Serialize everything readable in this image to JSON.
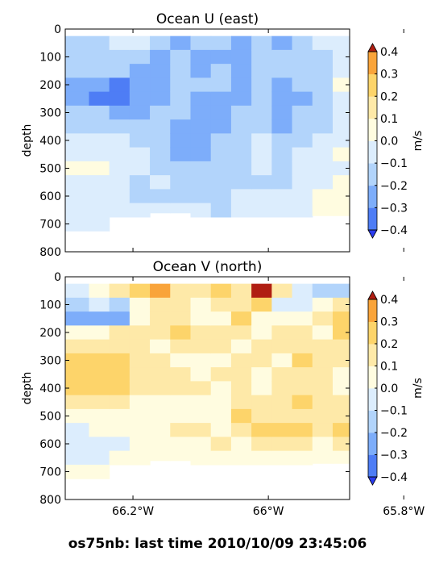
{
  "figure_caption": "os75nb: last time 2010/10/09 23:45:06",
  "chart_data": [
    {
      "type": "heatmap",
      "title": "Ocean U (east)",
      "xlabel": "",
      "ylabel": "depth",
      "ylim": [
        800,
        0
      ],
      "yticks": [
        0,
        100,
        200,
        300,
        400,
        500,
        600,
        700,
        800
      ],
      "xlim": [
        -66.3,
        -65.88
      ],
      "xticks": [
        -66.2,
        -66.0,
        -65.8
      ],
      "xticklabels": [],
      "colorbar": {
        "label": "m/s",
        "levels": [
          -0.4,
          -0.3,
          -0.2,
          -0.1,
          0.0,
          0.1,
          0.2,
          0.3,
          0.4
        ],
        "ticklabels": [
          "0.4",
          "0.3",
          "0.2",
          "0.1",
          "0.0",
          "−0.1",
          "−0.2",
          "−0.3",
          "−0.4"
        ],
        "colors": [
          "#2b3cf0",
          "#4e7df5",
          "#7dadfa",
          "#b2d4fb",
          "#dcedfd",
          "#fffce0",
          "#fee9a8",
          "#fdd46a",
          "#f9a43a",
          "#f06a1c",
          "#d7301f",
          "#b01e12"
        ]
      },
      "profiles": [
        {
          "x": -66.28,
          "bottom": 740,
          "values": [
            -0.15,
            -0.15,
            -0.2,
            -0.25,
            -0.3,
            -0.2,
            -0.15,
            -0.1,
            -0.05,
            0.05,
            -0.05,
            -0.05,
            -0.1,
            -0.05
          ]
        },
        {
          "x": -66.25,
          "bottom": 730,
          "values": [
            -0.15,
            -0.2,
            -0.2,
            -0.3,
            -0.35,
            -0.2,
            -0.15,
            -0.1,
            -0.05,
            0.0,
            -0.05,
            -0.05,
            -0.1,
            -0.05
          ]
        },
        {
          "x": -66.22,
          "bottom": 700,
          "values": [
            -0.1,
            -0.2,
            -0.2,
            -0.35,
            -0.38,
            -0.25,
            -0.15,
            -0.1,
            -0.1,
            -0.05,
            -0.1,
            -0.1,
            -0.05
          ]
        },
        {
          "x": -66.19,
          "bottom": 680,
          "values": [
            -0.1,
            -0.15,
            -0.25,
            -0.3,
            -0.3,
            -0.25,
            -0.2,
            -0.15,
            -0.1,
            -0.1,
            -0.15,
            -0.15,
            -0.1
          ]
        },
        {
          "x": -66.16,
          "bottom": 660,
          "values": [
            -0.2,
            -0.25,
            -0.3,
            -0.25,
            -0.25,
            -0.2,
            -0.2,
            -0.2,
            -0.15,
            -0.15,
            -0.1,
            -0.15,
            -0.1
          ]
        },
        {
          "x": -66.13,
          "bottom": 660,
          "values": [
            -0.25,
            -0.2,
            -0.2,
            -0.15,
            -0.2,
            -0.2,
            -0.25,
            -0.3,
            -0.25,
            -0.2,
            -0.15,
            -0.15,
            -0.1
          ]
        },
        {
          "x": -66.1,
          "bottom": 680,
          "values": [
            -0.2,
            -0.25,
            -0.25,
            -0.2,
            -0.25,
            -0.25,
            -0.3,
            -0.25,
            -0.25,
            -0.2,
            -0.2,
            -0.15,
            -0.1
          ]
        },
        {
          "x": -66.07,
          "bottom": 690,
          "values": [
            -0.15,
            -0.25,
            -0.2,
            -0.2,
            -0.25,
            -0.3,
            -0.25,
            -0.2,
            -0.2,
            -0.2,
            -0.15,
            -0.15,
            -0.15
          ]
        },
        {
          "x": -66.04,
          "bottom": 720,
          "values": [
            -0.25,
            -0.3,
            -0.3,
            -0.25,
            -0.25,
            -0.2,
            -0.2,
            -0.2,
            -0.2,
            -0.15,
            -0.15,
            -0.1,
            -0.1
          ]
        },
        {
          "x": -66.01,
          "bottom": 720,
          "values": [
            -0.2,
            -0.15,
            -0.2,
            -0.2,
            -0.15,
            -0.15,
            -0.15,
            -0.1,
            -0.1,
            -0.1,
            -0.15,
            -0.1,
            -0.05
          ]
        },
        {
          "x": -65.98,
          "bottom": 700,
          "values": [
            -0.3,
            -0.2,
            -0.2,
            -0.3,
            -0.3,
            -0.25,
            -0.25,
            -0.2,
            -0.2,
            -0.15,
            -0.15,
            -0.1,
            -0.1
          ]
        },
        {
          "x": -65.95,
          "bottom": 690,
          "values": [
            -0.2,
            -0.15,
            -0.15,
            -0.2,
            -0.25,
            -0.2,
            -0.15,
            -0.15,
            -0.1,
            -0.1,
            -0.1,
            -0.05,
            -0.05
          ]
        },
        {
          "x": -65.92,
          "bottom": 670,
          "values": [
            -0.1,
            -0.15,
            -0.2,
            -0.15,
            -0.15,
            -0.2,
            -0.15,
            -0.1,
            -0.1,
            -0.05,
            -0.05,
            0.0,
            0.05
          ]
        },
        {
          "x": -65.89,
          "bottom": 670,
          "values": [
            -0.05,
            -0.1,
            -0.05,
            0.05,
            -0.05,
            -0.1,
            -0.05,
            -0.05,
            0.0,
            -0.05,
            0.05,
            0.05,
            0.0
          ]
        }
      ]
    },
    {
      "type": "heatmap",
      "title": "Ocean V (north)",
      "xlabel": "",
      "ylabel": "depth",
      "ylim": [
        800,
        0
      ],
      "yticks": [
        0,
        100,
        200,
        300,
        400,
        500,
        600,
        700,
        800
      ],
      "xlim": [
        -66.3,
        -65.88
      ],
      "xticks": [
        -66.2,
        -66.0,
        -65.8
      ],
      "xticklabels": [
        "66.2°W",
        "66°W",
        "65.8°W"
      ],
      "colorbar": {
        "label": "m/s",
        "levels": [
          -0.4,
          -0.3,
          -0.2,
          -0.1,
          0.0,
          0.1,
          0.2,
          0.3,
          0.4
        ],
        "ticklabels": [
          "0.4",
          "0.3",
          "0.2",
          "0.1",
          "0.0",
          "−0.1",
          "−0.2",
          "−0.3",
          "−0.4"
        ],
        "colors": [
          "#2b3cf0",
          "#4e7df5",
          "#7dadfa",
          "#b2d4fb",
          "#dcedfd",
          "#fffce0",
          "#fee9a8",
          "#fdd46a",
          "#f9a43a",
          "#f06a1c",
          "#d7301f",
          "#b01e12"
        ]
      },
      "profiles": [
        {
          "x": -66.28,
          "bottom": 740,
          "values": [
            -0.05,
            -0.15,
            -0.25,
            0.05,
            0.1,
            0.2,
            0.25,
            0.2,
            0.15,
            0.05,
            -0.05,
            -0.05,
            -0.05,
            0.0
          ]
        },
        {
          "x": -66.25,
          "bottom": 730,
          "values": [
            0.05,
            -0.1,
            -0.3,
            0.05,
            0.15,
            0.25,
            0.2,
            0.2,
            0.15,
            0.05,
            0.0,
            -0.05,
            -0.05,
            0.0
          ]
        },
        {
          "x": -66.22,
          "bottom": 700,
          "values": [
            0.1,
            -0.15,
            -0.25,
            0.1,
            0.15,
            0.2,
            0.25,
            0.2,
            0.1,
            0.05,
            0.0,
            -0.05,
            0.0
          ]
        },
        {
          "x": -66.19,
          "bottom": 680,
          "values": [
            0.25,
            0.05,
            0.05,
            0.1,
            0.1,
            0.15,
            0.1,
            0.1,
            0.05,
            0.05,
            0.05,
            0.05,
            0.05
          ]
        },
        {
          "x": -66.16,
          "bottom": 660,
          "values": [
            0.35,
            0.15,
            0.1,
            0.15,
            0.05,
            0.1,
            0.1,
            0.1,
            0.05,
            0.05,
            0.05,
            0.05,
            0.05
          ]
        },
        {
          "x": -66.13,
          "bottom": 660,
          "values": [
            0.15,
            0.1,
            0.15,
            0.2,
            0.1,
            0.05,
            0.15,
            0.1,
            0.05,
            0.05,
            0.1,
            0.05,
            0.05
          ]
        },
        {
          "x": -66.1,
          "bottom": 680,
          "values": [
            0.1,
            0.05,
            0.05,
            0.15,
            0.1,
            0.05,
            0.05,
            0.1,
            0.05,
            0.05,
            0.15,
            0.05,
            0.05
          ]
        },
        {
          "x": -66.07,
          "bottom": 690,
          "values": [
            0.2,
            0.1,
            0.05,
            0.1,
            0.15,
            0.05,
            0.1,
            0.05,
            0.05,
            0.05,
            0.05,
            0.15,
            0.05
          ]
        },
        {
          "x": -66.04,
          "bottom": 720,
          "values": [
            0.1,
            0.15,
            0.2,
            0.1,
            0.05,
            0.15,
            0.15,
            0.1,
            0.1,
            0.2,
            0.15,
            0.05,
            0.05
          ]
        },
        {
          "x": -66.01,
          "bottom": 720,
          "values": [
            0.4,
            0.2,
            0.05,
            0.05,
            0.1,
            0.15,
            0.05,
            0.05,
            0.1,
            0.15,
            0.2,
            0.15,
            0.05
          ]
        },
        {
          "x": -65.98,
          "bottom": 700,
          "values": [
            0.1,
            -0.05,
            0.05,
            0.15,
            0.1,
            0.05,
            0.1,
            0.1,
            0.15,
            0.15,
            0.2,
            0.15,
            0.05
          ]
        },
        {
          "x": -65.95,
          "bottom": 690,
          "values": [
            -0.05,
            -0.1,
            0.05,
            0.1,
            0.15,
            0.2,
            0.1,
            0.15,
            0.2,
            0.15,
            0.2,
            0.1,
            0.05
          ]
        },
        {
          "x": -65.92,
          "bottom": 670,
          "values": [
            -0.15,
            0.05,
            0.1,
            0.05,
            0.1,
            0.15,
            0.1,
            0.1,
            0.15,
            0.1,
            0.15,
            0.05,
            0.05
          ]
        },
        {
          "x": -65.89,
          "bottom": 670,
          "values": [
            -0.2,
            0.15,
            0.2,
            0.25,
            0.15,
            0.1,
            0.05,
            0.05,
            0.1,
            0.15,
            0.2,
            0.15,
            0.05
          ]
        }
      ]
    }
  ]
}
